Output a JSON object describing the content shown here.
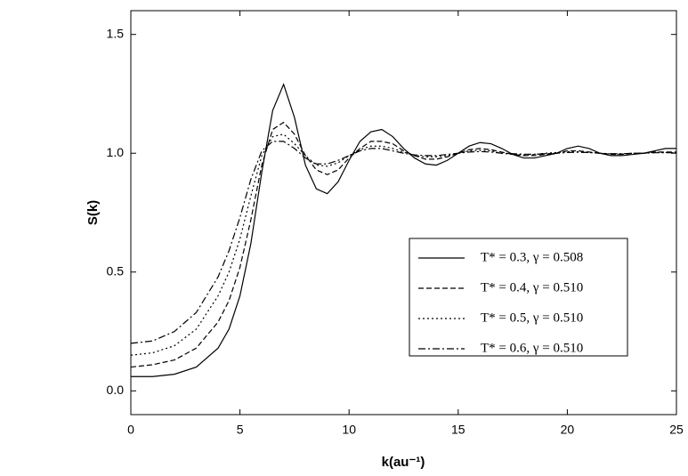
{
  "chart_data": {
    "type": "line",
    "x_label": "k(au⁻¹)",
    "y_label": "S(k)",
    "x": [
      0,
      1,
      2,
      3,
      4,
      4.5,
      5,
      5.5,
      6,
      6.5,
      7,
      7.5,
      8,
      8.5,
      9,
      9.5,
      10,
      10.5,
      11,
      11.5,
      12,
      12.5,
      13,
      13.5,
      14,
      14.5,
      15,
      15.5,
      16,
      16.5,
      17,
      17.5,
      18,
      18.5,
      19,
      19.5,
      20,
      20.5,
      21,
      21.5,
      22,
      22.5,
      23,
      23.5,
      24,
      24.5,
      25
    ],
    "series": [
      {
        "name": "T* = 0.3, γ = 0.508",
        "color": "#000000",
        "dash": "solid",
        "values": [
          0.06,
          0.06,
          0.07,
          0.1,
          0.18,
          0.26,
          0.4,
          0.62,
          0.92,
          1.18,
          1.29,
          1.15,
          0.95,
          0.85,
          0.83,
          0.88,
          0.97,
          1.05,
          1.09,
          1.1,
          1.07,
          1.02,
          0.98,
          0.955,
          0.95,
          0.97,
          1.0,
          1.03,
          1.045,
          1.04,
          1.02,
          0.995,
          0.98,
          0.98,
          0.99,
          1.0,
          1.02,
          1.03,
          1.02,
          1.0,
          0.99,
          0.99,
          0.995,
          1.0,
          1.01,
          1.02,
          1.02
        ]
      },
      {
        "name": "T* = 0.4, γ = 0.510",
        "color": "#000000",
        "dash": "dashed",
        "values": [
          0.1,
          0.11,
          0.13,
          0.18,
          0.29,
          0.38,
          0.52,
          0.72,
          0.95,
          1.1,
          1.13,
          1.08,
          0.99,
          0.93,
          0.91,
          0.93,
          0.98,
          1.02,
          1.05,
          1.05,
          1.04,
          1.01,
          0.99,
          0.975,
          0.975,
          0.985,
          1.0,
          1.015,
          1.02,
          1.015,
          1.005,
          0.995,
          0.99,
          0.99,
          0.995,
          1.0,
          1.01,
          1.01,
          1.005,
          1.0,
          0.995,
          0.995,
          1.0,
          1.0,
          1.005,
          1.005,
          1.005
        ]
      },
      {
        "name": "T* = 0.5, γ = 0.510",
        "color": "#000000",
        "dash": "dotted",
        "values": [
          0.15,
          0.16,
          0.19,
          0.26,
          0.4,
          0.5,
          0.64,
          0.82,
          0.99,
          1.07,
          1.08,
          1.04,
          0.99,
          0.95,
          0.945,
          0.96,
          0.99,
          1.015,
          1.03,
          1.03,
          1.02,
          1.005,
          0.99,
          0.985,
          0.985,
          0.99,
          1.0,
          1.01,
          1.012,
          1.01,
          1.0,
          0.995,
          0.993,
          0.995,
          1.0,
          1.003,
          1.006,
          1.006,
          1.003,
          1.0,
          0.997,
          0.997,
          1.0,
          1.0,
          1.003,
          1.003,
          1.003
        ]
      },
      {
        "name": "T* = 0.6, γ = 0.510",
        "color": "#000000",
        "dash": "dashdot",
        "values": [
          0.2,
          0.21,
          0.25,
          0.33,
          0.48,
          0.59,
          0.73,
          0.89,
          1.01,
          1.05,
          1.05,
          1.02,
          0.98,
          0.955,
          0.955,
          0.97,
          0.99,
          1.01,
          1.02,
          1.02,
          1.01,
          1.0,
          0.993,
          0.99,
          0.99,
          0.995,
          1.0,
          1.005,
          1.007,
          1.005,
          1.0,
          0.998,
          0.996,
          0.996,
          0.998,
          1.0,
          1.003,
          1.004,
          1.003,
          1.0,
          0.998,
          0.998,
          1.0,
          1.0,
          1.002,
          1.002,
          1.002
        ]
      }
    ],
    "xlim": [
      0,
      25
    ],
    "xticks": [
      0,
      5,
      10,
      15,
      20,
      25
    ],
    "ylim": [
      -0.1,
      1.6
    ],
    "yticks": [
      {
        "value": 0,
        "label": "0.0"
      },
      0.5,
      {
        "value": 1,
        "label": "1.0"
      },
      1.5
    ],
    "grid": false,
    "legend": "lower right"
  }
}
